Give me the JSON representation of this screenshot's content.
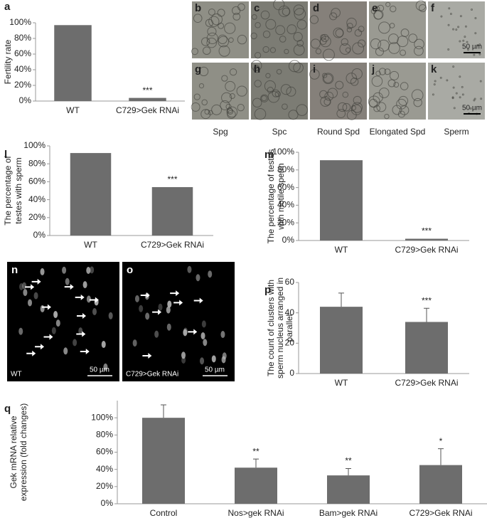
{
  "chart_data": [
    {
      "panel": "a",
      "type": "bar",
      "ylabel": [
        "Fertility rate"
      ],
      "categories": [
        "WT",
        "C729>Gek RNAi"
      ],
      "values": [
        97,
        4
      ],
      "annotations": [
        null,
        "***"
      ],
      "color": "#6d6d6d",
      "ylim": [
        0,
        100
      ],
      "yticks": [
        {
          "value": 0,
          "label": "0%"
        },
        {
          "value": 20,
          "label": "20%"
        },
        {
          "value": 40,
          "label": "40%"
        },
        {
          "value": 60,
          "label": "60%"
        },
        {
          "value": 80,
          "label": "80%"
        },
        {
          "value": 100,
          "label": "100%"
        }
      ]
    },
    {
      "panel": "l",
      "type": "bar",
      "ylabel": [
        "The percentage of",
        "testes  with sperm"
      ],
      "categories": [
        "WT",
        "C729>Gek RNAi"
      ],
      "values": [
        92,
        54
      ],
      "annotations": [
        null,
        "***"
      ],
      "color": "#6d6d6d",
      "ylim": [
        0,
        100
      ],
      "yticks": [
        {
          "value": 0,
          "label": "0%"
        },
        {
          "value": 20,
          "label": "20%"
        },
        {
          "value": 40,
          "label": "40%"
        },
        {
          "value": 60,
          "label": "60%"
        },
        {
          "value": 80,
          "label": "80%"
        },
        {
          "value": 100,
          "label": "100%"
        }
      ]
    },
    {
      "panel": "m",
      "type": "bar",
      "ylabel": [
        "The percentage of testes",
        "with motile sperm"
      ],
      "categories": [
        "WT",
        "C729>Gek RNAi"
      ],
      "values": [
        91,
        2
      ],
      "annotations": [
        null,
        "***"
      ],
      "color": "#6d6d6d",
      "ylim": [
        0,
        100
      ],
      "yticks": [
        {
          "value": 0,
          "label": "0%"
        },
        {
          "value": 20,
          "label": "20%"
        },
        {
          "value": 40,
          "label": "40%"
        },
        {
          "value": 60,
          "label": "60%"
        },
        {
          "value": 80,
          "label": "80%"
        },
        {
          "value": 100,
          "label": "100%"
        }
      ]
    },
    {
      "panel": "p",
      "type": "bar",
      "ylabel": [
        "The count of clusters with",
        "sperm nucleus arranged in",
        "parallel"
      ],
      "categories": [
        "WT",
        "C729>Gek RNAi"
      ],
      "values": [
        44,
        34
      ],
      "errors": [
        9,
        9
      ],
      "annotations": [
        null,
        "***"
      ],
      "color": "#6d6d6d",
      "ylim": [
        0,
        60
      ],
      "yticks": [
        0,
        20,
        40,
        60
      ]
    },
    {
      "panel": "q",
      "type": "bar",
      "ylabel": [
        "Gek mRNA relative",
        "expression (fold changes)"
      ],
      "categories": [
        "Control",
        "Nos>gek RNAi",
        "Bam>gek RNAi",
        "C729>Gek RNAi"
      ],
      "values": [
        100,
        42,
        33,
        45
      ],
      "errors": [
        15,
        10,
        8,
        19
      ],
      "annotations": [
        null,
        "**",
        "**",
        "*"
      ],
      "color": "#6d6d6d",
      "ylim": [
        0,
        120
      ],
      "yticks": [
        {
          "value": 0,
          "label": "0%"
        },
        {
          "value": 20,
          "label": "20%"
        },
        {
          "value": 40,
          "label": "40%"
        },
        {
          "value": 60,
          "label": "60%"
        },
        {
          "value": 80,
          "label": "80%"
        },
        {
          "value": 100,
          "label": "100%"
        }
      ]
    }
  ],
  "micrographs": {
    "top": [
      "b",
      "c",
      "d",
      "e",
      "f"
    ],
    "bottom": [
      "g",
      "h",
      "i",
      "j",
      "k"
    ],
    "captions": [
      "Spg",
      "Spc",
      "Round Spd",
      "Elongated Spd",
      "Sperm"
    ],
    "scale_bar": "50 µm"
  },
  "fluorescence": {
    "panels": [
      {
        "letter": "n",
        "label": "WT"
      },
      {
        "letter": "o",
        "label": "C729>Gek RNAi"
      }
    ],
    "scale_bar": "50 µm"
  }
}
